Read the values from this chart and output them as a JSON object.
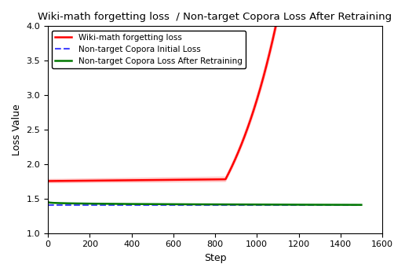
{
  "title": "Wiki-math forgetting loss  / Non-target Copora Loss After Retraining",
  "xlabel": "Step",
  "ylabel": "Loss Value",
  "xlim": [
    0,
    1600
  ],
  "ylim": [
    1.0,
    4.0
  ],
  "xticks": [
    0,
    200,
    400,
    600,
    800,
    1000,
    1200,
    1400,
    1600
  ],
  "yticks": [
    1.0,
    1.5,
    2.0,
    2.5,
    3.0,
    3.5,
    4.0
  ],
  "red_line_color": "#ff0000",
  "blue_line_color": "#4444ff",
  "green_line_color": "#007700",
  "red_fill_alpha": 0.15,
  "blue_value": 1.41,
  "green_start": 1.455,
  "green_end": 1.41,
  "red_flat_value": 1.755,
  "red_inflection": 850,
  "red_exp_scale": 1.58,
  "red_exp_rate": 0.00365,
  "num_steps": 1500,
  "legend_loc": "upper left",
  "legend_labels": [
    "Wiki-math forgetting loss",
    "Non-target Copora Initial Loss",
    "Non-target Copora Loss After Retraining"
  ]
}
